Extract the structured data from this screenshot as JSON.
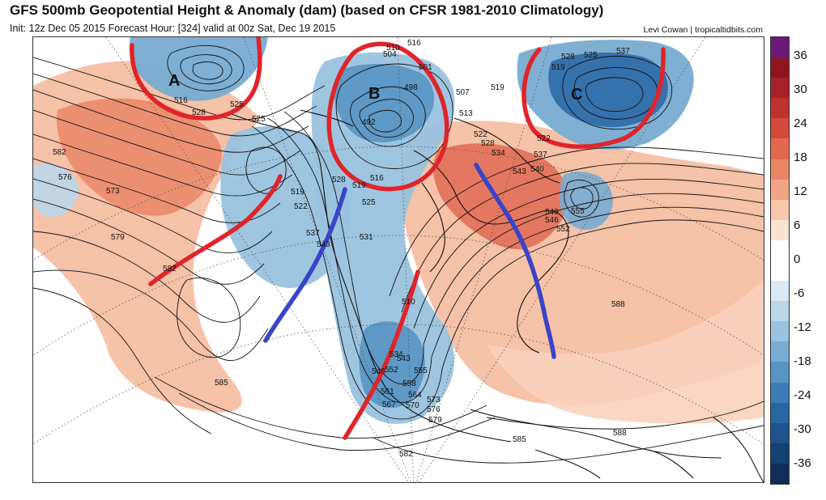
{
  "header": {
    "title": "GFS 500mb Geopotential Height & Anomaly (dam) (based on CFSR 1981-2010 Climatology)",
    "subtitle": "Init: 12z Dec 05 2015   Forecast Hour: [324]   valid at 00z Sat, Dec 19 2015",
    "credit": "Levi Cowan | tropicaltidbits.com"
  },
  "colorbar": {
    "ticks": [
      "36",
      "30",
      "24",
      "18",
      "12",
      "6",
      "0",
      "-6",
      "-12",
      "-18",
      "-24",
      "-30",
      "-36"
    ],
    "colors": [
      "#6b1a7a",
      "#8e1421",
      "#a8202a",
      "#c0302f",
      "#d34a3d",
      "#e2684f",
      "#ea8565",
      "#f1a584",
      "#f7c6ab",
      "#fbe3d4",
      "#ffffff",
      "#ffffff",
      "#dbe9f3",
      "#bcd7ea",
      "#9ac3df",
      "#78acd2",
      "#5694c4",
      "#3b7cb5",
      "#2866a3",
      "#1d528c",
      "#163f72",
      "#0f2d58"
    ]
  },
  "annotations": {
    "letters": [
      "A",
      "B",
      "C"
    ]
  },
  "height_labels": [
    "516",
    "528",
    "525",
    "525",
    "582",
    "576",
    "573",
    "579",
    "582",
    "585",
    "519",
    "522",
    "537",
    "543",
    "528",
    "525",
    "531",
    "516",
    "519",
    "492",
    "498",
    "501",
    "504",
    "507",
    "510",
    "513",
    "516",
    "519",
    "522",
    "528",
    "534",
    "537",
    "543",
    "540",
    "546",
    "549",
    "552",
    "555",
    "537",
    "525",
    "528",
    "522",
    "519",
    "510",
    "534",
    "543",
    "546",
    "552",
    "555",
    "558",
    "561",
    "564",
    "567",
    "570",
    "573",
    "576",
    "579",
    "582",
    "585",
    "588",
    "588",
    "585"
  ],
  "colors": {
    "trough_marker": "#3a44c8",
    "ridge_marker": "#e0242a"
  }
}
